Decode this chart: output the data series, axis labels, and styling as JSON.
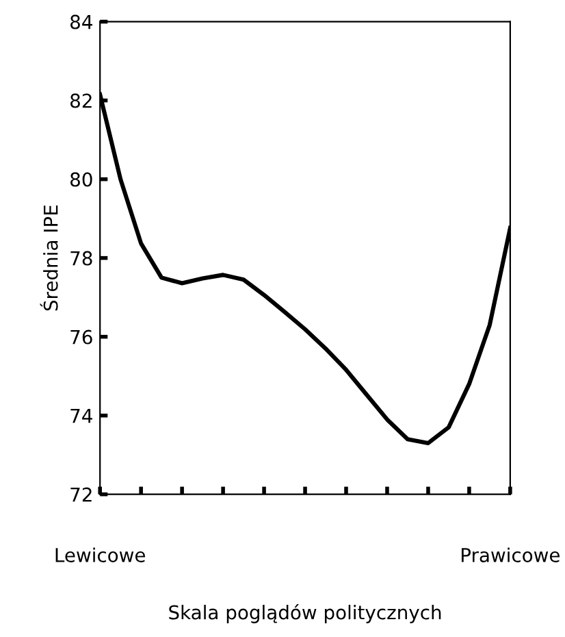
{
  "chart_data": {
    "type": "line",
    "xlabel": "Skala poglądów politycznych",
    "ylabel": "Średnia IPE",
    "categories": [
      "Lewicowe",
      null,
      null,
      null,
      null,
      null,
      null,
      null,
      null,
      null,
      null,
      null,
      null,
      null,
      null,
      null,
      null,
      null,
      null,
      null,
      "Prawicowe"
    ],
    "series": [
      {
        "color": "#000000",
        "values": [
          82.15,
          80.0,
          78.37,
          77.5,
          77.36,
          77.48,
          77.57,
          77.45,
          77.06,
          76.63,
          76.19,
          75.7,
          75.16,
          74.53,
          73.9,
          73.4,
          73.3,
          73.7,
          74.8,
          76.3,
          78.76
        ]
      }
    ],
    "ylim": [
      72,
      84
    ],
    "yticks": [
      72,
      74,
      76,
      78,
      80,
      82,
      84
    ],
    "grid": false,
    "legend": false,
    "marker": "none",
    "line_style": "solid"
  }
}
